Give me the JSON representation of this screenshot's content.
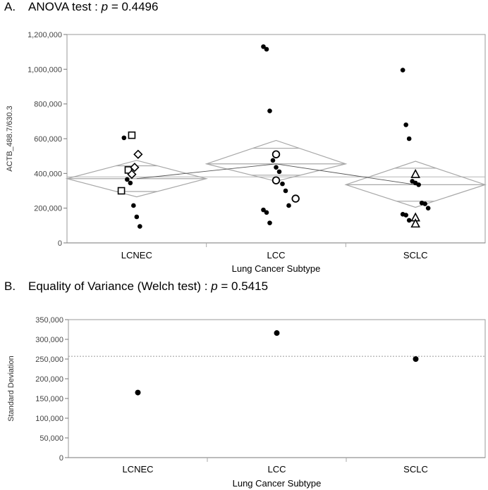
{
  "panelA": {
    "letter": "A.",
    "title_prefix": "ANOVA test : ",
    "p_symbol": "p",
    "p_text": " = 0.4496"
  },
  "panelB": {
    "letter": "B.",
    "title_prefix": "Equality of Variance (Welch test) : ",
    "p_symbol": "p",
    "p_text": " = 0.5415"
  },
  "chart_data": [
    {
      "type": "scatter",
      "title": "ANOVA test : p = 0.4496",
      "xlabel": "Lung Cancer Subtype",
      "ylabel": "ACTB_488.7/630.3",
      "categories": [
        "LCNEC",
        "LCC",
        "SCLC"
      ],
      "ylim": [
        0,
        1200000
      ],
      "yticks": [
        0,
        200000,
        400000,
        600000,
        800000,
        1000000,
        1200000
      ],
      "ytick_labels": [
        "0",
        "200,000",
        "400,000",
        "600,000",
        "800,000",
        "1,000,000",
        "1,200,000"
      ],
      "grand_mean": 380000,
      "groups": [
        {
          "name": "LCNEC",
          "mean": 370000,
          "ci": [
            265000,
            475000
          ],
          "overlap_marks": [
            296000,
            444000
          ],
          "points": [
            605000,
            365000,
            345000,
            215000,
            150000,
            95000
          ],
          "marked_points": [
            {
              "shape": "square",
              "dx": -0.035,
              "value": 620000
            },
            {
              "shape": "square",
              "dx": -0.06,
              "value": 420000
            },
            {
              "shape": "square",
              "dx": -0.11,
              "value": 300000
            },
            {
              "shape": "diamond",
              "dx": 0.01,
              "value": 510000
            },
            {
              "shape": "diamond",
              "dx": -0.015,
              "value": 435000
            },
            {
              "shape": "diamond",
              "dx": -0.035,
              "value": 395000
            }
          ]
        },
        {
          "name": "LCC",
          "mean": 455000,
          "ci": [
            355000,
            590000
          ],
          "overlap_marks": [
            390000,
            545000
          ],
          "points": [
            1130000,
            1115000,
            760000,
            475000,
            435000,
            410000,
            340000,
            300000,
            215000,
            190000,
            175000,
            115000
          ],
          "marked_points": [
            {
              "shape": "circle",
              "dx": 0.0,
              "value": 510000
            },
            {
              "shape": "circle",
              "dx": 0.0,
              "value": 360000
            },
            {
              "shape": "circle",
              "dx": 0.14,
              "value": 255000
            }
          ]
        },
        {
          "name": "SCLC",
          "mean": 335000,
          "ci": [
            205000,
            470000
          ],
          "overlap_marks": [
            240000,
            430000
          ],
          "points": [
            995000,
            680000,
            600000,
            355000,
            345000,
            335000,
            230000,
            225000,
            200000,
            165000,
            160000,
            130000
          ],
          "marked_points": [
            {
              "shape": "triangle",
              "dx": 0.0,
              "value": 395000
            },
            {
              "shape": "triangle",
              "dx": 0.0,
              "value": 145000
            },
            {
              "shape": "triangle",
              "dx": 0.0,
              "value": 110000
            }
          ]
        }
      ]
    },
    {
      "type": "scatter",
      "title": "Equality of Variance (Welch test) : p = 0.5415",
      "xlabel": "Lung Cancer Subtype",
      "ylabel": "Standard Deviation",
      "categories": [
        "LCNEC",
        "LCC",
        "SCLC"
      ],
      "values": [
        165000,
        316000,
        250000
      ],
      "reference_line": 257000,
      "ylim": [
        0,
        350000
      ],
      "yticks": [
        0,
        50000,
        100000,
        150000,
        200000,
        250000,
        300000,
        350000
      ],
      "ytick_labels": [
        "0",
        "50,000",
        "100,000",
        "150,000",
        "200,000",
        "250,000",
        "300,000",
        "350,000"
      ]
    }
  ]
}
